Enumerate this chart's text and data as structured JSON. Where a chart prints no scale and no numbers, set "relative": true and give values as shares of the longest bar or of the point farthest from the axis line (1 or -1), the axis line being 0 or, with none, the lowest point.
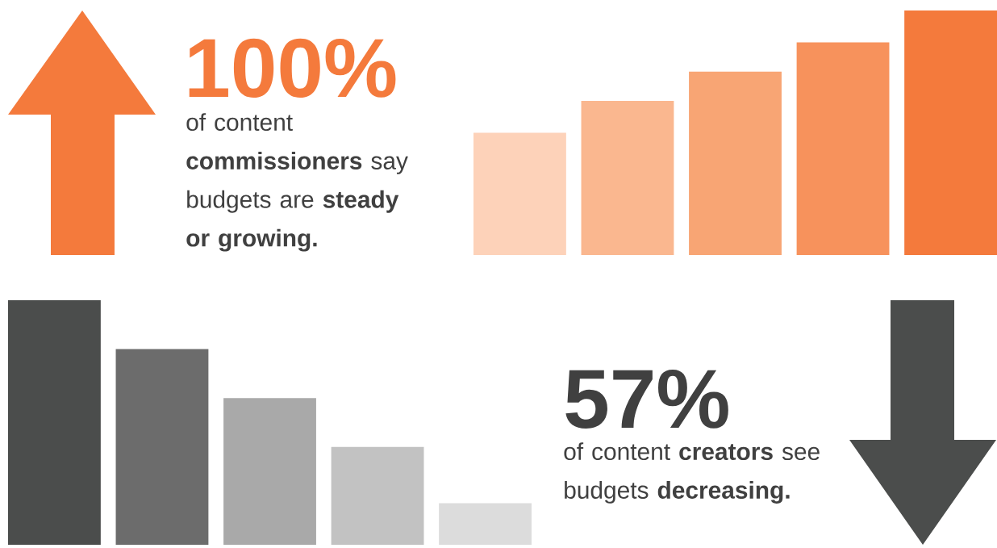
{
  "chart_data": [
    {
      "type": "bar",
      "title": "100%",
      "annotations": [
        "of content **commissioners** say budgets are **steady or growing.**"
      ],
      "relative": true,
      "categories": [
        null,
        null,
        null,
        null,
        null
      ],
      "values": [
        0.5,
        0.63,
        0.75,
        0.87,
        1
      ],
      "colors": [
        "#fdd2b9",
        "#fab78f",
        "#f8a574",
        "#f7925c",
        "#f47a3c"
      ]
    },
    {
      "type": "bar",
      "title": "57%",
      "annotations": [
        "of content **creators** see budgets **decreasing.**"
      ],
      "relative": true,
      "categories": [
        null,
        null,
        null,
        null,
        null
      ],
      "values": [
        1,
        0.8,
        0.6,
        0.4,
        0.17
      ],
      "colors": [
        "#4b4d4c",
        "#6c6c6c",
        "#a9a9a9",
        "#c2c2c2",
        "#dcdcdc"
      ]
    }
  ]
}
